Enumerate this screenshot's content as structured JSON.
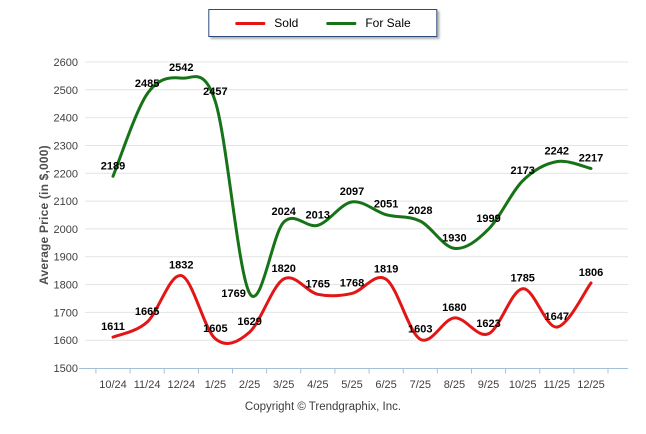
{
  "legend": {
    "items": [
      {
        "label": "Sold"
      },
      {
        "label": "For Sale"
      }
    ]
  },
  "chart_data": {
    "type": "line",
    "title": "",
    "xlabel": "",
    "ylabel": "Average Price (in $,000)",
    "ylim": [
      1500,
      2600
    ],
    "ytick_step": 100,
    "grid": true,
    "legend_position": "top-center",
    "smoothing": "spline",
    "categories": [
      "10/24",
      "11/24",
      "12/24",
      "1/25",
      "2/25",
      "3/25",
      "4/25",
      "5/25",
      "6/25",
      "7/25",
      "8/25",
      "9/25",
      "10/25",
      "11/25",
      "12/25"
    ],
    "series": [
      {
        "name": "Sold",
        "color": "#e31616",
        "values": [
          1611,
          1665,
          1832,
          1605,
          1629,
          1820,
          1765,
          1768,
          1819,
          1603,
          1680,
          1623,
          1785,
          1647,
          1806
        ]
      },
      {
        "name": "For Sale",
        "color": "#177317",
        "values": [
          2189,
          2485,
          2542,
          2457,
          1769,
          2024,
          2013,
          2097,
          2051,
          2028,
          1930,
          1999,
          2173,
          2242,
          2217
        ]
      }
    ],
    "label_offsets": {
      "1:4": {
        "dx": -16,
        "dy": 11
      }
    }
  },
  "footer": {
    "text": "Copyright © Trendgraphix, Inc."
  }
}
